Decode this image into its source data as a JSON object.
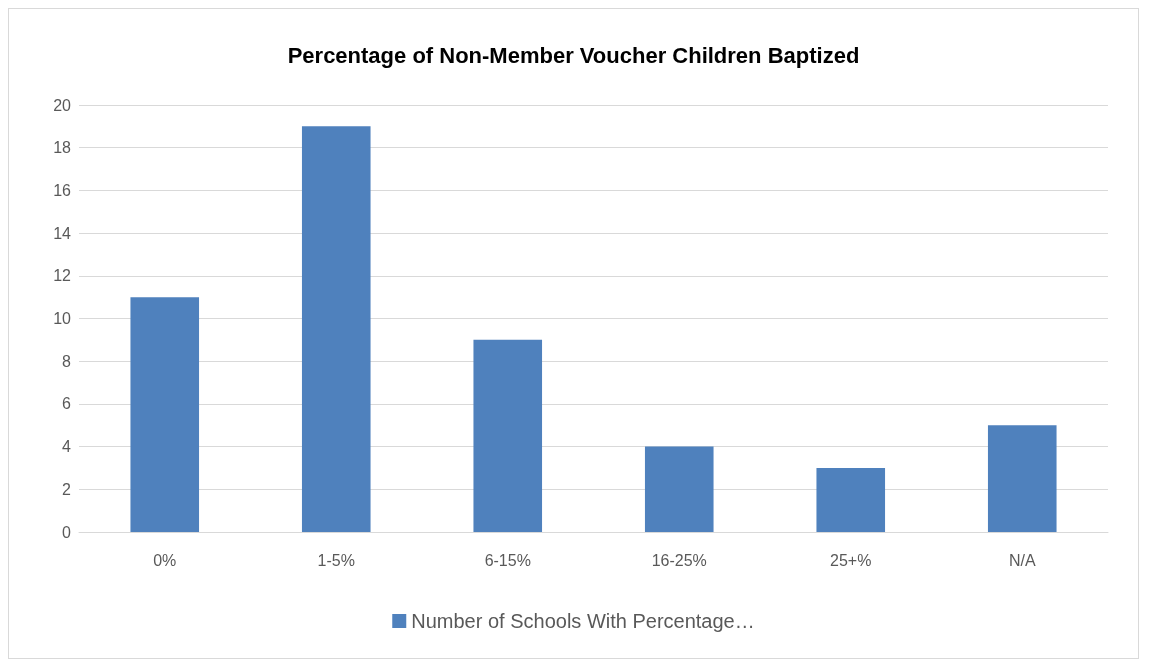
{
  "chart_data": {
    "type": "bar",
    "title": "Percentage of Non-Member Voucher Children Baptized",
    "categories": [
      "0%",
      "1-5%",
      "6-15%",
      "16-25%",
      "25+%",
      "N/A"
    ],
    "series": [
      {
        "name": "Number of Schools With Percentage…",
        "color": "#4f81bd",
        "values": [
          11,
          19,
          9,
          4,
          3,
          5
        ]
      }
    ],
    "ylim": [
      0,
      20
    ],
    "yticks": [
      0,
      2,
      4,
      6,
      8,
      10,
      12,
      14,
      16,
      18,
      20
    ],
    "grid": "y",
    "legend": "bottom"
  }
}
